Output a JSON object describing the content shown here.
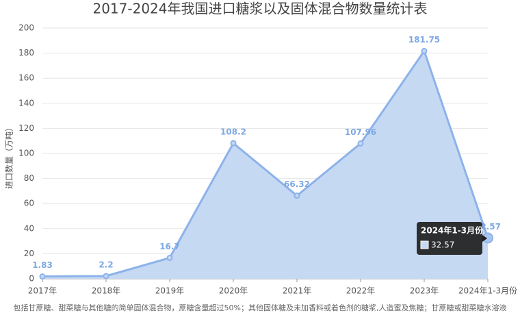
{
  "chart_data": {
    "type": "area",
    "title": "2017-2024年我国进口糖浆以及固体混合物数量统计表",
    "y_label": "进口数量（万吨）",
    "categories": [
      "2017年",
      "2018年",
      "2019年",
      "2020年",
      "2021年",
      "2022年",
      "2023年",
      "2024年1-3月份"
    ],
    "series": [
      {
        "name": "进口数量",
        "color": "#8db2ea",
        "values": [
          1.83,
          2.2,
          16.7,
          108.2,
          66.32,
          107.96,
          181.75,
          32.57
        ]
      }
    ],
    "ylim": [
      0,
      200
    ],
    "yticks": [
      0,
      20,
      40,
      60,
      80,
      100,
      120,
      140,
      160,
      180,
      200
    ],
    "grid": true,
    "footnote": "包括甘蔗糖、甜菜糖与其他糖的简单固体混合物，蔗糖含量超过50%；其他固体糖及未加香料或着色剂的糖浆,人造蜜及焦糖；甘蔗糖或甜菜糖水溶液"
  }
}
